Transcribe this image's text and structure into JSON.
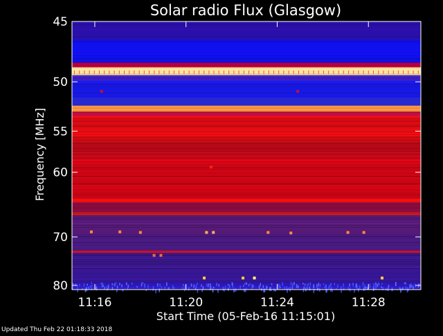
{
  "chart_data": {
    "type": "heatmap",
    "title": "Solar radio Flux (Glasgow)",
    "xlabel": "Start Time (05-Feb-16 11:15:01)",
    "ylabel": "Frequency [MHz]",
    "x_ticks": [
      "11:16",
      "11:20",
      "11:24",
      "11:28"
    ],
    "x_tick_minutes": [
      1,
      5,
      9,
      13
    ],
    "xlim_minutes": [
      0,
      15.3
    ],
    "y_ticks": [
      "45",
      "50",
      "55",
      "60",
      "70",
      "80"
    ],
    "y_tick_values": [
      45,
      50,
      55,
      60,
      70,
      80
    ],
    "ylim": [
      45,
      81
    ],
    "y_scale": "reciprocal",
    "bands": [
      {
        "from": 45.0,
        "to": 46.4,
        "color": "#2a10a8"
      },
      {
        "from": 46.4,
        "to": 48.3,
        "color": "#1010ee"
      },
      {
        "from": 48.3,
        "to": 48.7,
        "color": "#b3003c"
      },
      {
        "from": 48.7,
        "to": 49.4,
        "color": "#ffe6a0"
      },
      {
        "from": 49.4,
        "to": 49.9,
        "color": "#4422cc"
      },
      {
        "from": 49.9,
        "to": 51.5,
        "color": "#1818e6"
      },
      {
        "from": 51.5,
        "to": 52.3,
        "color": "#2828d0"
      },
      {
        "from": 52.3,
        "to": 52.9,
        "color": "#ff9a40"
      },
      {
        "from": 52.9,
        "to": 53.4,
        "color": "#c01040"
      },
      {
        "from": 53.4,
        "to": 56.2,
        "color": "#dd0c12"
      },
      {
        "from": 56.2,
        "to": 58.2,
        "color": "#b80818"
      },
      {
        "from": 58.2,
        "to": 63.7,
        "color": "#c70514"
      },
      {
        "from": 63.7,
        "to": 64.3,
        "color": "#ee1010"
      },
      {
        "from": 64.3,
        "to": 65.8,
        "color": "#8a0c40"
      },
      {
        "from": 65.8,
        "to": 66.3,
        "color": "#c01818"
      },
      {
        "from": 66.3,
        "to": 69.6,
        "color": "#561a78"
      },
      {
        "from": 69.6,
        "to": 72.6,
        "color": "#481a80"
      },
      {
        "from": 72.6,
        "to": 73.0,
        "color": "#d81010"
      },
      {
        "from": 73.0,
        "to": 76.5,
        "color": "#3a188c"
      },
      {
        "from": 76.5,
        "to": 79.2,
        "color": "#361694"
      },
      {
        "from": 79.2,
        "to": 81.0,
        "color": "#2c18b4"
      }
    ],
    "bursts": [
      {
        "t": 1.3,
        "f": 50.9,
        "color": "#c01040"
      },
      {
        "t": 9.9,
        "f": 50.9,
        "color": "#c01040"
      },
      {
        "t": 6.1,
        "f": 59.3,
        "color": "#ff2020"
      },
      {
        "t": 0.85,
        "f": 69.1,
        "color": "#ff8a40"
      },
      {
        "t": 2.1,
        "f": 69.1,
        "color": "#ff8a40"
      },
      {
        "t": 3.0,
        "f": 69.2,
        "color": "#ff8a40"
      },
      {
        "t": 5.9,
        "f": 69.2,
        "color": "#ffb060"
      },
      {
        "t": 6.2,
        "f": 69.2,
        "color": "#ffb060"
      },
      {
        "t": 8.6,
        "f": 69.2,
        "color": "#ff8a40"
      },
      {
        "t": 9.6,
        "f": 69.3,
        "color": "#ff8a40"
      },
      {
        "t": 12.1,
        "f": 69.2,
        "color": "#ff8a40"
      },
      {
        "t": 12.8,
        "f": 69.2,
        "color": "#ff8a40"
      },
      {
        "t": 3.6,
        "f": 73.5,
        "color": "#ff6a30"
      },
      {
        "t": 3.9,
        "f": 73.5,
        "color": "#ff6a30"
      },
      {
        "t": 5.8,
        "f": 78.3,
        "color": "#ffd040"
      },
      {
        "t": 7.5,
        "f": 78.3,
        "color": "#ffd040"
      },
      {
        "t": 8.0,
        "f": 78.3,
        "color": "#ffff80"
      },
      {
        "t": 13.6,
        "f": 78.3,
        "color": "#ffd040"
      }
    ]
  },
  "footer": {
    "updated": "Updated Thu Feb 22 01:18:33 2018"
  }
}
